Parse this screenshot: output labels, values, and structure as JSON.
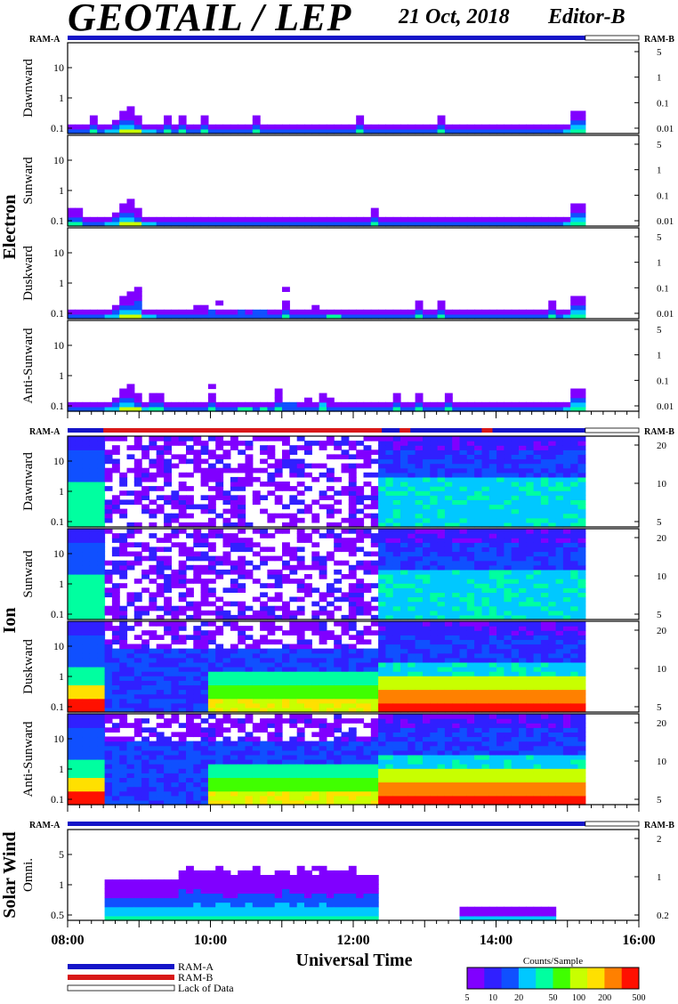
{
  "header": {
    "title": "GEOTAIL / LEP",
    "date": "21 Oct, 2018",
    "editor": "Editor-B"
  },
  "sections": [
    {
      "name": "Electron",
      "ram_left": "RAM-A",
      "ram_right": "RAM-B"
    },
    {
      "name": "Ion",
      "ram_left": "RAM-A",
      "ram_right": "RAM-B"
    },
    {
      "name": "Solar Wind",
      "ram_left": "RAM-A",
      "ram_right": "RAM-B"
    }
  ],
  "legend": {
    "ram_a": "RAM-A",
    "ram_b": "RAM-B",
    "lack": "Lack of Data",
    "colorbar_title": "Counts/Sample",
    "colorbar_ticks": [
      "5",
      "10",
      "20",
      "50",
      "100",
      "200",
      "500"
    ]
  },
  "colors": {
    "ram_a": "#1515c8",
    "ram_b": "#d81818",
    "colormap": [
      "#8000ff",
      "#3020ff",
      "#1050ff",
      "#00c8ff",
      "#00ffa0",
      "#40ff00",
      "#c8ff00",
      "#ffe000",
      "#ff8000",
      "#ff1000"
    ]
  },
  "chart_data": [
    {
      "type": "heatmap",
      "section": "Electron",
      "ylabel": "Dawnward",
      "yticks_left": [
        "10",
        "1",
        "0.1"
      ],
      "yticks_right": [
        "5",
        "1",
        "0.1",
        "0.01"
      ],
      "profile": "electron"
    },
    {
      "type": "heatmap",
      "section": "Electron",
      "ylabel": "Sunward",
      "yticks_left": [
        "10",
        "1",
        "0.1"
      ],
      "yticks_right": [
        "5",
        "1",
        "0.1",
        "0.01"
      ],
      "profile": "electron"
    },
    {
      "type": "heatmap",
      "section": "Electron",
      "ylabel": "Duskward",
      "yticks_left": [
        "10",
        "1",
        "0.1"
      ],
      "yticks_right": [
        "5",
        "1",
        "0.1",
        "0.01"
      ],
      "profile": "electron-active"
    },
    {
      "type": "heatmap",
      "section": "Electron",
      "ylabel": "Anti-Sunward",
      "yticks_left": [
        "10",
        "1",
        "0.1"
      ],
      "yticks_right": [
        "5",
        "1",
        "0.1",
        "0.01"
      ],
      "profile": "electron-active"
    },
    {
      "type": "heatmap",
      "section": "Ion",
      "ylabel": "Dawnward",
      "yticks_left": [
        "10",
        "1",
        "0.1"
      ],
      "yticks_right": [
        "20",
        "10",
        "5"
      ],
      "profile": "ion"
    },
    {
      "type": "heatmap",
      "section": "Ion",
      "ylabel": "Sunward",
      "yticks_left": [
        "10",
        "1",
        "0.1"
      ],
      "yticks_right": [
        "20",
        "10",
        "5"
      ],
      "profile": "ion"
    },
    {
      "type": "heatmap",
      "section": "Ion",
      "ylabel": "Duskward",
      "yticks_left": [
        "10",
        "1",
        "0.1"
      ],
      "yticks_right": [
        "20",
        "10",
        "5"
      ],
      "profile": "ion-hot"
    },
    {
      "type": "heatmap",
      "section": "Ion",
      "ylabel": "Anti-Sunward",
      "yticks_left": [
        "10",
        "1",
        "0.1"
      ],
      "yticks_right": [
        "20",
        "10",
        "5"
      ],
      "profile": "ion-hot"
    },
    {
      "type": "heatmap",
      "section": "Solar Wind",
      "ylabel": "Omni.",
      "yticks_left": [
        "5",
        "1",
        "0.5"
      ],
      "yticks_right": [
        "2",
        "1",
        "0.2"
      ],
      "profile": "solarwind"
    }
  ],
  "xaxis": {
    "title": "Universal Time",
    "tick_labels": [
      "08:00",
      "10:00",
      "12:00",
      "14:00",
      "16:00"
    ],
    "range_hours": [
      8,
      16
    ],
    "data_end_hour": 15.25
  },
  "ram_b_intervals_hours": [
    [
      8.5,
      12.4
    ],
    [
      12.65,
      12.8
    ],
    [
      13.8,
      13.95
    ]
  ]
}
